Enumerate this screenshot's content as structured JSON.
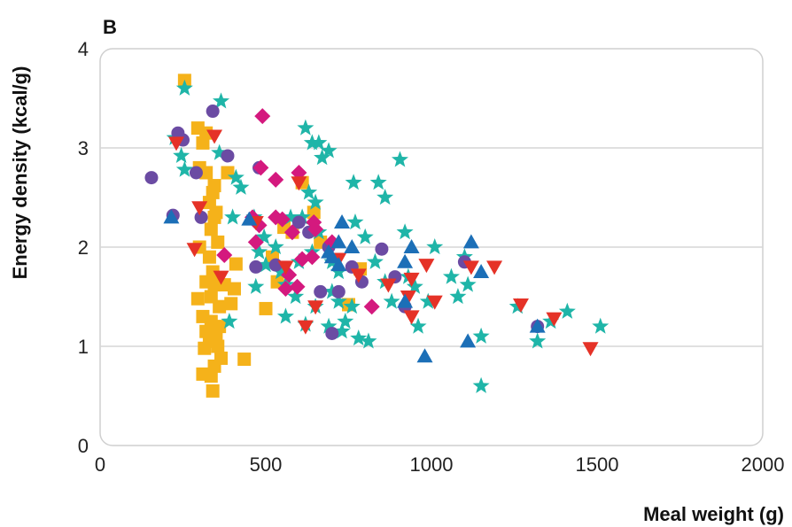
{
  "chart_data": {
    "type": "scatter",
    "panel_label": "B",
    "title": "",
    "xlabel": "Meal weight (g)",
    "ylabel": "Energy density (kcal/g)",
    "xlim": [
      0,
      2000
    ],
    "ylim": [
      0,
      4
    ],
    "xticks": [
      0,
      500,
      1000,
      1500,
      2000
    ],
    "yticks": [
      0,
      1,
      2,
      3,
      4
    ],
    "grid": "horizontal",
    "legend": "none",
    "series": [
      {
        "name": "series-1",
        "marker": "square",
        "color": "#F5B21A",
        "points": [
          [
            255,
            3.68
          ],
          [
            295,
            3.2
          ],
          [
            320,
            3.15
          ],
          [
            310,
            3.05
          ],
          [
            300,
            2.8
          ],
          [
            320,
            2.75
          ],
          [
            345,
            2.62
          ],
          [
            385,
            2.75
          ],
          [
            340,
            2.55
          ],
          [
            330,
            2.45
          ],
          [
            350,
            2.35
          ],
          [
            345,
            2.3
          ],
          [
            335,
            2.18
          ],
          [
            355,
            2.05
          ],
          [
            330,
            1.9
          ],
          [
            340,
            1.75
          ],
          [
            320,
            1.65
          ],
          [
            345,
            1.62
          ],
          [
            375,
            1.62
          ],
          [
            405,
            1.58
          ],
          [
            410,
            1.83
          ],
          [
            395,
            1.43
          ],
          [
            360,
            1.4
          ],
          [
            335,
            1.5
          ],
          [
            295,
            1.48
          ],
          [
            310,
            1.3
          ],
          [
            335,
            1.25
          ],
          [
            360,
            1.2
          ],
          [
            320,
            1.15
          ],
          [
            350,
            1.12
          ],
          [
            330,
            1.05
          ],
          [
            355,
            1.0
          ],
          [
            365,
            0.88
          ],
          [
            345,
            0.8
          ],
          [
            310,
            0.72
          ],
          [
            335,
            0.7
          ],
          [
            340,
            0.55
          ],
          [
            435,
            0.87
          ],
          [
            315,
            0.98
          ],
          [
            500,
            1.38
          ],
          [
            535,
            1.65
          ],
          [
            555,
            2.2
          ],
          [
            580,
            2.15
          ],
          [
            610,
            2.65
          ],
          [
            645,
            2.35
          ],
          [
            665,
            2.05
          ],
          [
            785,
            1.78
          ],
          [
            750,
            1.42
          ],
          [
            520,
            1.9
          ],
          [
            300,
            2.0
          ]
        ]
      },
      {
        "name": "series-2",
        "marker": "star",
        "color": "#1FB5A8",
        "points": [
          [
            255,
            3.6
          ],
          [
            365,
            3.47
          ],
          [
            225,
            3.1
          ],
          [
            245,
            2.92
          ],
          [
            255,
            2.78
          ],
          [
            360,
            2.95
          ],
          [
            425,
            2.6
          ],
          [
            465,
            2.3
          ],
          [
            495,
            2.1
          ],
          [
            480,
            1.95
          ],
          [
            470,
            1.6
          ],
          [
            500,
            1.82
          ],
          [
            545,
            1.75
          ],
          [
            560,
            1.62
          ],
          [
            590,
            1.5
          ],
          [
            575,
            2.3
          ],
          [
            620,
            3.2
          ],
          [
            640,
            3.05
          ],
          [
            660,
            3.05
          ],
          [
            690,
            2.97
          ],
          [
            670,
            2.9
          ],
          [
            630,
            2.55
          ],
          [
            650,
            2.45
          ],
          [
            610,
            2.3
          ],
          [
            660,
            2.15
          ],
          [
            640,
            1.95
          ],
          [
            700,
            1.85
          ],
          [
            720,
            1.75
          ],
          [
            700,
            1.55
          ],
          [
            720,
            1.45
          ],
          [
            760,
            1.4
          ],
          [
            740,
            1.25
          ],
          [
            690,
            1.2
          ],
          [
            730,
            1.15
          ],
          [
            780,
            1.08
          ],
          [
            810,
            1.05
          ],
          [
            765,
            2.65
          ],
          [
            840,
            2.65
          ],
          [
            860,
            2.5
          ],
          [
            770,
            2.25
          ],
          [
            800,
            2.1
          ],
          [
            830,
            1.85
          ],
          [
            860,
            1.65
          ],
          [
            880,
            1.45
          ],
          [
            905,
            2.88
          ],
          [
            920,
            2.15
          ],
          [
            930,
            1.7
          ],
          [
            960,
            1.2
          ],
          [
            1010,
            2.0
          ],
          [
            1060,
            1.7
          ],
          [
            1080,
            1.5
          ],
          [
            1110,
            1.62
          ],
          [
            1150,
            1.1
          ],
          [
            1150,
            0.6
          ],
          [
            1260,
            1.4
          ],
          [
            1320,
            1.05
          ],
          [
            1360,
            1.25
          ],
          [
            1410,
            1.35
          ],
          [
            1510,
            1.2
          ],
          [
            390,
            1.25
          ],
          [
            560,
            1.3
          ],
          [
            620,
            1.22
          ],
          [
            650,
            1.4
          ],
          [
            400,
            2.3
          ],
          [
            410,
            2.7
          ],
          [
            530,
            2.0
          ],
          [
            600,
            1.85
          ],
          [
            1100,
            1.9
          ],
          [
            990,
            1.45
          ],
          [
            950,
            1.6
          ]
        ]
      },
      {
        "name": "series-3",
        "marker": "circle",
        "color": "#6B4BA3",
        "points": [
          [
            155,
            2.7
          ],
          [
            235,
            3.15
          ],
          [
            250,
            3.08
          ],
          [
            340,
            3.37
          ],
          [
            385,
            2.92
          ],
          [
            290,
            2.75
          ],
          [
            305,
            2.3
          ],
          [
            220,
            2.32
          ],
          [
            480,
            2.8
          ],
          [
            530,
            1.82
          ],
          [
            470,
            1.8
          ],
          [
            600,
            2.25
          ],
          [
            630,
            2.15
          ],
          [
            665,
            1.55
          ],
          [
            720,
            1.55
          ],
          [
            700,
            1.13
          ],
          [
            790,
            1.65
          ],
          [
            850,
            1.98
          ],
          [
            890,
            1.7
          ],
          [
            920,
            1.4
          ],
          [
            1100,
            1.85
          ],
          [
            1320,
            1.2
          ],
          [
            690,
            2.0
          ],
          [
            760,
            1.8
          ]
        ]
      },
      {
        "name": "series-4",
        "marker": "diamond",
        "color": "#D4197E",
        "points": [
          [
            490,
            3.32
          ],
          [
            485,
            2.8
          ],
          [
            530,
            2.68
          ],
          [
            600,
            2.75
          ],
          [
            460,
            2.3
          ],
          [
            480,
            2.22
          ],
          [
            530,
            2.3
          ],
          [
            550,
            2.28
          ],
          [
            580,
            2.15
          ],
          [
            470,
            2.05
          ],
          [
            645,
            2.25
          ],
          [
            650,
            2.18
          ],
          [
            375,
            1.92
          ],
          [
            640,
            1.9
          ],
          [
            610,
            1.88
          ],
          [
            570,
            1.72
          ],
          [
            560,
            1.58
          ],
          [
            595,
            1.6
          ],
          [
            820,
            1.4
          ],
          [
            700,
            2.05
          ]
        ]
      },
      {
        "name": "series-5",
        "marker": "triangle-down",
        "color": "#E53227",
        "points": [
          [
            230,
            3.05
          ],
          [
            345,
            3.12
          ],
          [
            285,
            1.98
          ],
          [
            365,
            1.7
          ],
          [
            300,
            2.4
          ],
          [
            470,
            2.25
          ],
          [
            560,
            1.8
          ],
          [
            600,
            2.65
          ],
          [
            620,
            1.2
          ],
          [
            650,
            1.4
          ],
          [
            720,
            1.88
          ],
          [
            780,
            1.72
          ],
          [
            870,
            1.62
          ],
          [
            930,
            1.5
          ],
          [
            940,
            1.3
          ],
          [
            985,
            1.82
          ],
          [
            1010,
            1.45
          ],
          [
            1120,
            1.8
          ],
          [
            1190,
            1.8
          ],
          [
            1270,
            1.42
          ],
          [
            1370,
            1.28
          ],
          [
            1480,
            0.98
          ],
          [
            940,
            1.68
          ]
        ]
      },
      {
        "name": "series-6",
        "marker": "triangle-up",
        "color": "#1C6FB7",
        "points": [
          [
            215,
            2.3
          ],
          [
            450,
            2.28
          ],
          [
            690,
            1.95
          ],
          [
            720,
            2.05
          ],
          [
            730,
            2.25
          ],
          [
            760,
            2.0
          ],
          [
            720,
            1.82
          ],
          [
            920,
            1.85
          ],
          [
            940,
            2.0
          ],
          [
            920,
            1.45
          ],
          [
            980,
            0.9
          ],
          [
            1120,
            2.05
          ],
          [
            1110,
            1.05
          ],
          [
            1150,
            1.75
          ],
          [
            1320,
            1.2
          ],
          [
            700,
            1.9
          ]
        ]
      }
    ]
  }
}
